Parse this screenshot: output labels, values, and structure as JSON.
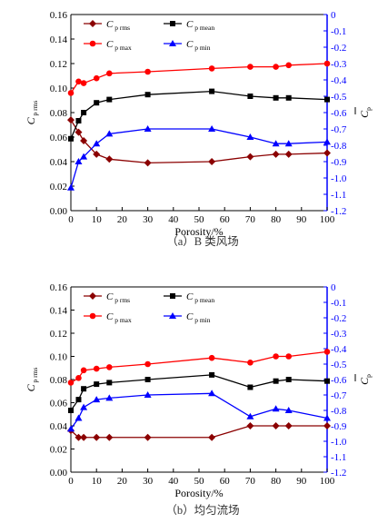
{
  "chart_data": [
    {
      "type": "line",
      "caption": "（a）B 类风场",
      "xlabel": "Porosity/%",
      "ylabel_left": {
        "symbol": "C",
        "sub": "p rms"
      },
      "ylabel_right": {
        "symbol": "C",
        "sub": "p"
      },
      "xlim": [
        0,
        100
      ],
      "xticks": [
        "0",
        "10",
        "20",
        "30",
        "40",
        "50",
        "60",
        "70",
        "80",
        "90",
        "100"
      ],
      "ylim_left": [
        0,
        0.16
      ],
      "yticks_left": [
        "0.00",
        "0.02",
        "0.04",
        "0.06",
        "0.08",
        "0.10",
        "0.12",
        "0.14",
        "0.16"
      ],
      "ylim_right": [
        -1.2,
        0
      ],
      "yticks_right": [
        "-1.2",
        "-1.1",
        "-1.0",
        "-0.9",
        "-0.8",
        "-0.7",
        "-0.6",
        "-0.5",
        "-0.4",
        "-0.3",
        "-0.2",
        "-0.1",
        "0"
      ],
      "legend": [
        {
          "symbol": "C",
          "sub": "p rms",
          "color": "#8b0000",
          "marker": "diamond"
        },
        {
          "symbol": "C",
          "sub": "p mean",
          "color": "#000000",
          "marker": "square"
        },
        {
          "symbol": "C",
          "sub": "p max",
          "color": "#ff0000",
          "marker": "circle"
        },
        {
          "symbol": "C",
          "sub": "p min",
          "color": "#0000ff",
          "marker": "triangle"
        }
      ],
      "series": [
        {
          "name": "C p rms",
          "axis": "left",
          "color": "#8b0000",
          "marker": "diamond",
          "x": [
            0,
            3,
            5,
            10,
            15,
            30,
            55,
            70,
            80,
            85,
            100
          ],
          "y": [
            0.074,
            0.064,
            0.057,
            0.046,
            0.042,
            0.039,
            0.04,
            0.044,
            0.046,
            0.046,
            0.047
          ]
        },
        {
          "name": "C p mean",
          "axis": "right",
          "color": "#000000",
          "marker": "square",
          "x": [
            0,
            3,
            5,
            10,
            15,
            30,
            55,
            70,
            80,
            85,
            100
          ],
          "y": [
            -0.76,
            -0.65,
            -0.6,
            -0.54,
            -0.52,
            -0.49,
            -0.47,
            -0.5,
            -0.51,
            -0.51,
            -0.52
          ]
        },
        {
          "name": "C p max",
          "axis": "right",
          "color": "#ff0000",
          "marker": "circle",
          "x": [
            0,
            3,
            5,
            10,
            15,
            30,
            55,
            70,
            80,
            85,
            100
          ],
          "y": [
            -0.48,
            -0.41,
            -0.42,
            -0.39,
            -0.36,
            -0.35,
            -0.33,
            -0.32,
            -0.32,
            -0.31,
            -0.3
          ]
        },
        {
          "name": "C p min",
          "axis": "right",
          "color": "#0000ff",
          "marker": "triangle",
          "x": [
            0,
            3,
            5,
            10,
            15,
            30,
            55,
            70,
            80,
            85,
            100
          ],
          "y": [
            -1.06,
            -0.9,
            -0.87,
            -0.79,
            -0.73,
            -0.7,
            -0.7,
            -0.75,
            -0.79,
            -0.79,
            -0.78
          ]
        }
      ]
    },
    {
      "type": "line",
      "caption": "（b）均匀流场",
      "xlabel": "Porosity/%",
      "ylabel_left": {
        "symbol": "C",
        "sub": "p rms"
      },
      "ylabel_right": {
        "symbol": "C",
        "sub": "p"
      },
      "xlim": [
        0,
        100
      ],
      "xticks": [
        "0",
        "10",
        "20",
        "30",
        "40",
        "50",
        "60",
        "70",
        "80",
        "90",
        "100"
      ],
      "ylim_left": [
        0,
        0.16
      ],
      "yticks_left": [
        "0.00",
        "0.02",
        "0.04",
        "0.06",
        "0.08",
        "0.10",
        "0.12",
        "0.14",
        "0.16"
      ],
      "ylim_right": [
        -1.2,
        0
      ],
      "yticks_right": [
        "-1.2",
        "-1.1",
        "-1.0",
        "-0.9",
        "-0.8",
        "-0.7",
        "-0.6",
        "-0.5",
        "-0.4",
        "-0.3",
        "-0.2",
        "-0.1",
        "0"
      ],
      "legend": [
        {
          "symbol": "C",
          "sub": "p rms",
          "color": "#8b0000",
          "marker": "diamond"
        },
        {
          "symbol": "C",
          "sub": "p mean",
          "color": "#000000",
          "marker": "square"
        },
        {
          "symbol": "C",
          "sub": "p max",
          "color": "#ff0000",
          "marker": "circle"
        },
        {
          "symbol": "C",
          "sub": "p min",
          "color": "#0000ff",
          "marker": "triangle"
        }
      ],
      "series": [
        {
          "name": "C p rms",
          "axis": "left",
          "color": "#8b0000",
          "marker": "diamond",
          "x": [
            0,
            3,
            5,
            10,
            15,
            30,
            55,
            70,
            80,
            85,
            100
          ],
          "y": [
            0.036,
            0.03,
            0.03,
            0.03,
            0.03,
            0.03,
            0.03,
            0.04,
            0.04,
            0.04,
            0.04
          ]
        },
        {
          "name": "C p mean",
          "axis": "right",
          "color": "#000000",
          "marker": "square",
          "x": [
            0,
            3,
            5,
            10,
            15,
            30,
            55,
            70,
            80,
            85,
            100
          ],
          "y": [
            -0.8,
            -0.73,
            -0.66,
            -0.63,
            -0.62,
            -0.6,
            -0.57,
            -0.65,
            -0.61,
            -0.6,
            -0.61
          ]
        },
        {
          "name": "C p max",
          "axis": "right",
          "color": "#ff0000",
          "marker": "circle",
          "x": [
            0,
            3,
            5,
            10,
            15,
            30,
            55,
            70,
            80,
            85,
            100
          ],
          "y": [
            -0.62,
            -0.59,
            -0.54,
            -0.53,
            -0.52,
            -0.5,
            -0.46,
            -0.49,
            -0.45,
            -0.45,
            -0.42
          ]
        },
        {
          "name": "C p min",
          "axis": "right",
          "color": "#0000ff",
          "marker": "triangle",
          "x": [
            0,
            3,
            5,
            10,
            15,
            30,
            55,
            70,
            80,
            85,
            100
          ],
          "y": [
            -0.92,
            -0.85,
            -0.78,
            -0.73,
            -0.72,
            -0.7,
            -0.69,
            -0.84,
            -0.79,
            -0.8,
            -0.85
          ]
        }
      ]
    }
  ]
}
